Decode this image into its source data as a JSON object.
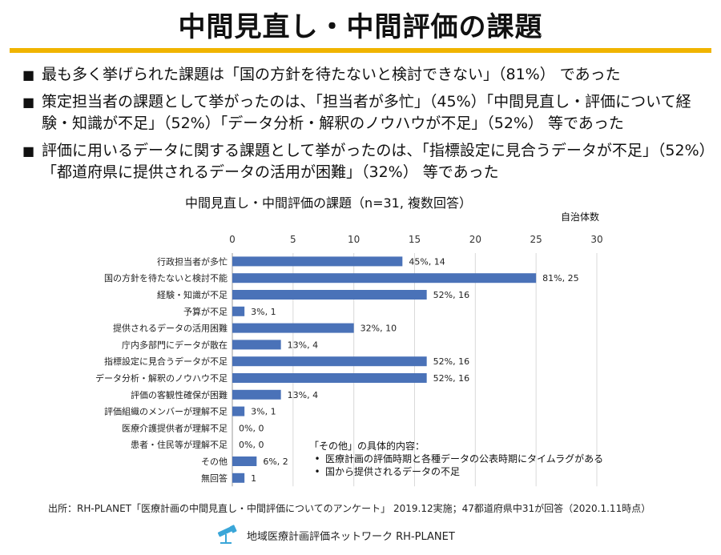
{
  "slide": {
    "title": "中間見直し・中間評価の課題",
    "bullets": [
      "最も多く挙げられた課題は「国の方針を待たないと検討できない」（81%） であった",
      "策定担当者の課題として挙がったのは、「担当者が多忙」（45%）「中間見直し・評価について経験・知識が不足」（52%）「データ分析・解釈のノウハウが不足」（52%） 等であった",
      "評価に用いるデータに関する課題として挙がったのは、「指標設定に見合うデータが不足」（52%）「都道府県に提供されるデータの活用が困難」（32%） 等であった"
    ],
    "chart_title": "中間見直し・中間評価の課題（n=31, 複数回答）",
    "chart_unit": "自治体数",
    "other_note": {
      "heading": "「その他」の具体的内容：",
      "items": [
        "医療計画の評価時期と各種データの公表時期にタイムラグがある",
        "国から提供されるデータの不足"
      ]
    },
    "source": "出所：RH-PLANET「医療計画の中間見直し・中間評価についてのアンケート」 2019.12実施；47都道府県中31が回答（2020.1.11時点）",
    "footer": "地域医療計画評価ネットワーク RH-PLANET"
  },
  "colors": {
    "bar": "#4a72b8",
    "accent": "#f0b400"
  },
  "chart_data": {
    "type": "bar",
    "orientation": "horizontal",
    "title": "中間見直し・中間評価の課題（n=31, 複数回答）",
    "xlabel": "自治体数",
    "xlim": [
      0,
      30
    ],
    "xticks": [
      0,
      5,
      10,
      15,
      20,
      25,
      30
    ],
    "grid": true,
    "categories": [
      "行政担当者が多忙",
      "国の方針を待たないと検討不能",
      "経験・知識が不足",
      "予算が不足",
      "提供されるデータの活用困難",
      "庁内多部門にデータが散在",
      "指標設定に見合うデータが不足",
      "データ分析・解釈のノウハウ不足",
      "評価の客観性確保が困難",
      "評価組織のメンバーが理解不足",
      "医療介護提供者が理解不足",
      "患者・住民等が理解不足",
      "その他",
      "無回答"
    ],
    "values": [
      14,
      25,
      16,
      1,
      10,
      4,
      16,
      16,
      4,
      1,
      0,
      0,
      2,
      1
    ],
    "data_labels": [
      "45%, 14",
      "81%, 25",
      "52%, 16",
      "3%, 1",
      "32%, 10",
      "13%, 4",
      "52%, 16",
      "52%, 16",
      "13%, 4",
      "3%, 1",
      "0%, 0",
      "0%, 0",
      "6%, 2",
      "1"
    ]
  }
}
